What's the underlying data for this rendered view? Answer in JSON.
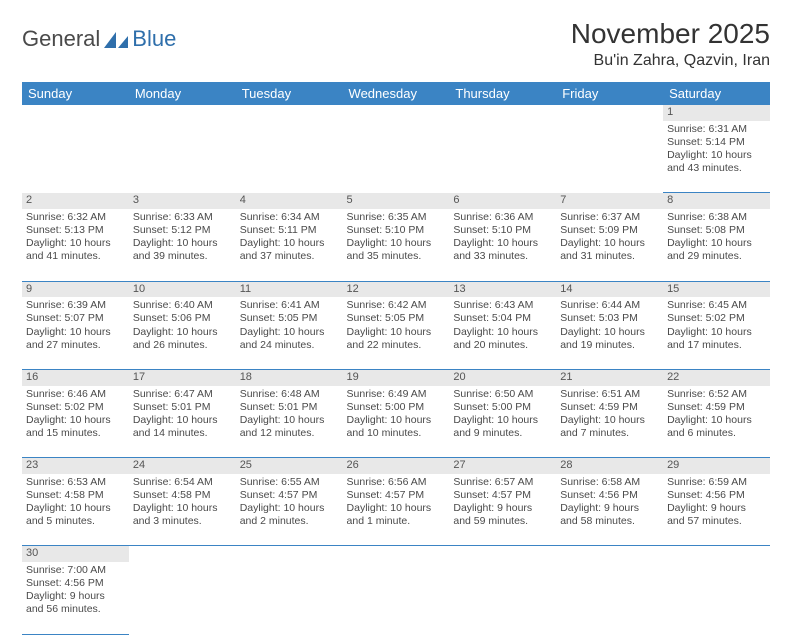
{
  "logo": {
    "part1": "General",
    "part2": "Blue"
  },
  "title": "November 2025",
  "location": "Bu'in Zahra, Qazvin, Iran",
  "colors": {
    "header_bg": "#3b84c4",
    "header_text": "#ffffff",
    "daynum_bg": "#e8e8e8",
    "row_border": "#3b84c4",
    "text": "#4a4a4a",
    "logo_gray": "#4a4a4a",
    "logo_blue": "#2f6fab",
    "page_bg": "#ffffff"
  },
  "typography": {
    "title_fontsize": 28,
    "location_fontsize": 16,
    "weekday_fontsize": 13,
    "cell_fontsize": 10.5,
    "daynum_fontsize": 11
  },
  "weekdays": [
    "Sunday",
    "Monday",
    "Tuesday",
    "Wednesday",
    "Thursday",
    "Friday",
    "Saturday"
  ],
  "first_weekday_index": 6,
  "days": [
    {
      "n": 1,
      "sunrise": "6:31 AM",
      "sunset": "5:14 PM",
      "daylight": "10 hours and 43 minutes."
    },
    {
      "n": 2,
      "sunrise": "6:32 AM",
      "sunset": "5:13 PM",
      "daylight": "10 hours and 41 minutes."
    },
    {
      "n": 3,
      "sunrise": "6:33 AM",
      "sunset": "5:12 PM",
      "daylight": "10 hours and 39 minutes."
    },
    {
      "n": 4,
      "sunrise": "6:34 AM",
      "sunset": "5:11 PM",
      "daylight": "10 hours and 37 minutes."
    },
    {
      "n": 5,
      "sunrise": "6:35 AM",
      "sunset": "5:10 PM",
      "daylight": "10 hours and 35 minutes."
    },
    {
      "n": 6,
      "sunrise": "6:36 AM",
      "sunset": "5:10 PM",
      "daylight": "10 hours and 33 minutes."
    },
    {
      "n": 7,
      "sunrise": "6:37 AM",
      "sunset": "5:09 PM",
      "daylight": "10 hours and 31 minutes."
    },
    {
      "n": 8,
      "sunrise": "6:38 AM",
      "sunset": "5:08 PM",
      "daylight": "10 hours and 29 minutes."
    },
    {
      "n": 9,
      "sunrise": "6:39 AM",
      "sunset": "5:07 PM",
      "daylight": "10 hours and 27 minutes."
    },
    {
      "n": 10,
      "sunrise": "6:40 AM",
      "sunset": "5:06 PM",
      "daylight": "10 hours and 26 minutes."
    },
    {
      "n": 11,
      "sunrise": "6:41 AM",
      "sunset": "5:05 PM",
      "daylight": "10 hours and 24 minutes."
    },
    {
      "n": 12,
      "sunrise": "6:42 AM",
      "sunset": "5:05 PM",
      "daylight": "10 hours and 22 minutes."
    },
    {
      "n": 13,
      "sunrise": "6:43 AM",
      "sunset": "5:04 PM",
      "daylight": "10 hours and 20 minutes."
    },
    {
      "n": 14,
      "sunrise": "6:44 AM",
      "sunset": "5:03 PM",
      "daylight": "10 hours and 19 minutes."
    },
    {
      "n": 15,
      "sunrise": "6:45 AM",
      "sunset": "5:02 PM",
      "daylight": "10 hours and 17 minutes."
    },
    {
      "n": 16,
      "sunrise": "6:46 AM",
      "sunset": "5:02 PM",
      "daylight": "10 hours and 15 minutes."
    },
    {
      "n": 17,
      "sunrise": "6:47 AM",
      "sunset": "5:01 PM",
      "daylight": "10 hours and 14 minutes."
    },
    {
      "n": 18,
      "sunrise": "6:48 AM",
      "sunset": "5:01 PM",
      "daylight": "10 hours and 12 minutes."
    },
    {
      "n": 19,
      "sunrise": "6:49 AM",
      "sunset": "5:00 PM",
      "daylight": "10 hours and 10 minutes."
    },
    {
      "n": 20,
      "sunrise": "6:50 AM",
      "sunset": "5:00 PM",
      "daylight": "10 hours and 9 minutes."
    },
    {
      "n": 21,
      "sunrise": "6:51 AM",
      "sunset": "4:59 PM",
      "daylight": "10 hours and 7 minutes."
    },
    {
      "n": 22,
      "sunrise": "6:52 AM",
      "sunset": "4:59 PM",
      "daylight": "10 hours and 6 minutes."
    },
    {
      "n": 23,
      "sunrise": "6:53 AM",
      "sunset": "4:58 PM",
      "daylight": "10 hours and 5 minutes."
    },
    {
      "n": 24,
      "sunrise": "6:54 AM",
      "sunset": "4:58 PM",
      "daylight": "10 hours and 3 minutes."
    },
    {
      "n": 25,
      "sunrise": "6:55 AM",
      "sunset": "4:57 PM",
      "daylight": "10 hours and 2 minutes."
    },
    {
      "n": 26,
      "sunrise": "6:56 AM",
      "sunset": "4:57 PM",
      "daylight": "10 hours and 1 minute."
    },
    {
      "n": 27,
      "sunrise": "6:57 AM",
      "sunset": "4:57 PM",
      "daylight": "9 hours and 59 minutes."
    },
    {
      "n": 28,
      "sunrise": "6:58 AM",
      "sunset": "4:56 PM",
      "daylight": "9 hours and 58 minutes."
    },
    {
      "n": 29,
      "sunrise": "6:59 AM",
      "sunset": "4:56 PM",
      "daylight": "9 hours and 57 minutes."
    },
    {
      "n": 30,
      "sunrise": "7:00 AM",
      "sunset": "4:56 PM",
      "daylight": "9 hours and 56 minutes."
    }
  ],
  "labels": {
    "sunrise": "Sunrise:",
    "sunset": "Sunset:",
    "daylight": "Daylight:"
  }
}
